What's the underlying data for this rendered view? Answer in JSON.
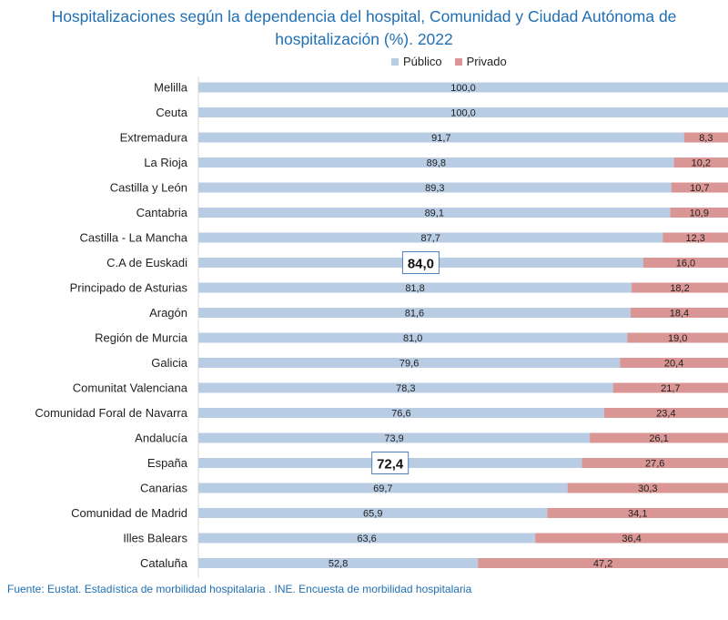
{
  "title": {
    "line1": "Hospitalizaciones según la dependencia del hospital, Comunidad y Ciudad Autónoma de",
    "line2": "hospitalización (%). 2022"
  },
  "source": "Fuente: Eustat. Estadística de morbilidad hospitalaria . INE. Encuesta de morbilidad hospitalaria",
  "colors": {
    "publico": "#b8cce4",
    "privado": "#d99694",
    "highlight_border": "#4f81bd"
  },
  "chart_data": {
    "type": "bar",
    "orientation": "horizontal",
    "stacked": true,
    "percent": true,
    "title": "Hospitalizaciones según la dependencia del hospital, Comunidad y Ciudad Autónoma de hospitalización (%). 2022",
    "xlim": [
      0,
      100
    ],
    "legend": [
      "Público",
      "Privado"
    ],
    "legend_position": "top-right",
    "categories": [
      "Melilla",
      "Ceuta",
      "Extremadura",
      "La Rioja",
      "Castilla y León",
      "Cantabria",
      "Castilla - La Mancha",
      "C.A de Euskadi",
      "Principado de Asturias",
      "Aragón",
      "Región de Murcia",
      "Galicia",
      "Comunitat Valenciana",
      "Comunidad Foral de Navarra",
      "Andalucía",
      "España",
      "Canarias",
      "Comunidad de Madrid",
      "Illes Balears",
      "Cataluña"
    ],
    "series": [
      {
        "name": "Público",
        "values": [
          100.0,
          100.0,
          91.7,
          89.8,
          89.3,
          89.1,
          87.7,
          84.0,
          81.8,
          81.6,
          81.0,
          79.6,
          78.3,
          76.6,
          73.9,
          72.4,
          69.7,
          65.9,
          63.6,
          52.8
        ],
        "labels": [
          "100,0",
          "100,0",
          "91,7",
          "89,8",
          "89,3",
          "89,1",
          "87,7",
          "84,0",
          "81,8",
          "81,6",
          "81,0",
          "79,6",
          "78,3",
          "76,6",
          "73,9",
          "72,4",
          "69,7",
          "65,9",
          "63,6",
          "52,8"
        ]
      },
      {
        "name": "Privado",
        "values": [
          0,
          0,
          8.3,
          10.2,
          10.7,
          10.9,
          12.3,
          16.0,
          18.2,
          18.4,
          19.0,
          20.4,
          21.7,
          23.4,
          26.1,
          27.6,
          30.3,
          34.1,
          36.4,
          47.2
        ],
        "labels": [
          "",
          "",
          "8,3",
          "10,2",
          "10,7",
          "10,9",
          "12,3",
          "16,0",
          "18,2",
          "18,4",
          "19,0",
          "20,4",
          "21,7",
          "23,4",
          "26,1",
          "27,6",
          "30,3",
          "34,1",
          "36,4",
          "47,2"
        ]
      }
    ],
    "highlighted": [
      "C.A de Euskadi",
      "España"
    ]
  }
}
